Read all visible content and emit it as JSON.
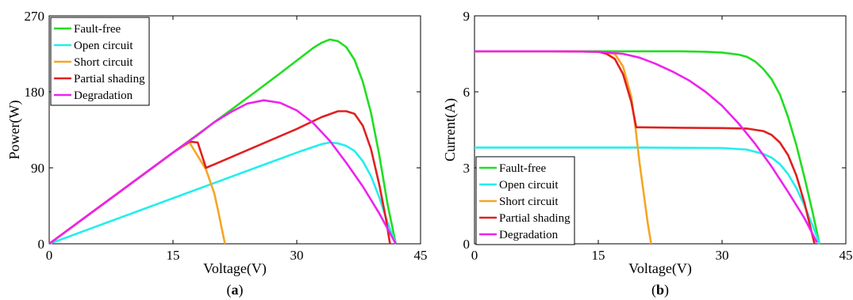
{
  "chart_data": [
    {
      "type": "line",
      "caption_prefix": "(",
      "caption_letter": "a",
      "caption_suffix": ")",
      "xlabel": "Voltage(V)",
      "ylabel": "Power(W)",
      "xlim": [
        0,
        45
      ],
      "ylim": [
        0,
        270
      ],
      "xticks": [
        0,
        15,
        30,
        45
      ],
      "yticks": [
        0,
        90,
        180,
        270
      ],
      "grid": false,
      "legend_position": "top-left",
      "series": [
        {
          "name": "Fault-free",
          "color": "#22dd22",
          "x": [
            0,
            5,
            10,
            15,
            20,
            25,
            28,
            30,
            32,
            33,
            34,
            35,
            36,
            37,
            38,
            39,
            40,
            41,
            42
          ],
          "y": [
            0,
            36,
            72,
            108,
            144,
            180,
            202,
            217,
            232,
            238,
            242,
            240,
            233,
            218,
            192,
            155,
            105,
            47,
            0
          ]
        },
        {
          "name": "Open circuit",
          "color": "#22eeee",
          "x": [
            0,
            5,
            10,
            15,
            20,
            25,
            30,
            33,
            34,
            35,
            36,
            37,
            38,
            39,
            40,
            41,
            42
          ],
          "y": [
            0,
            18,
            36,
            54,
            72,
            90,
            108,
            118,
            120,
            119,
            116,
            110,
            98,
            80,
            55,
            25,
            0
          ]
        },
        {
          "name": "Short circuit",
          "color": "#f5a623",
          "x": [
            0,
            5,
            10,
            15,
            17,
            19,
            20,
            20.5,
            21,
            21.3
          ],
          "y": [
            0,
            36,
            72,
            108,
            120,
            88,
            60,
            38,
            14,
            0
          ]
        },
        {
          "name": "Partial shading",
          "color": "#e02020",
          "x": [
            0,
            5,
            10,
            15,
            16,
            17,
            18,
            19,
            20,
            25,
            30,
            33,
            35,
            36,
            37,
            38,
            39,
            40,
            40.8,
            41.3
          ],
          "y": [
            0,
            36,
            72,
            108,
            115,
            121,
            120,
            90,
            94,
            115,
            136,
            150,
            157,
            157,
            154,
            140,
            112,
            70,
            30,
            0
          ]
        },
        {
          "name": "Degradation",
          "color": "#ee22ee",
          "x": [
            0,
            5,
            10,
            15,
            18,
            20,
            22,
            24,
            26,
            28,
            30,
            32,
            34,
            36,
            38,
            40,
            42
          ],
          "y": [
            0,
            36,
            72,
            108,
            129,
            144,
            156,
            166,
            170,
            167,
            158,
            143,
            122,
            96,
            68,
            36,
            0
          ]
        }
      ]
    },
    {
      "type": "line",
      "caption_prefix": "(",
      "caption_letter": "b",
      "caption_suffix": ")",
      "xlabel": "Voltage(V)",
      "ylabel": "Current(A)",
      "xlim": [
        0,
        45
      ],
      "ylim": [
        0,
        9
      ],
      "xticks": [
        0,
        15,
        30,
        45
      ],
      "yticks": [
        0,
        3,
        6,
        9
      ],
      "grid": false,
      "legend_position": "bottom-left",
      "series": [
        {
          "name": "Fault-free",
          "color": "#22dd22",
          "x": [
            0,
            10,
            20,
            25,
            28,
            30,
            32,
            33,
            34,
            35,
            36,
            37,
            38,
            39,
            40,
            41,
            41.8
          ],
          "y": [
            7.6,
            7.6,
            7.6,
            7.6,
            7.58,
            7.55,
            7.47,
            7.38,
            7.2,
            6.9,
            6.5,
            5.9,
            5.0,
            3.9,
            2.6,
            1.2,
            0
          ]
        },
        {
          "name": "Open circuit",
          "color": "#22eeee",
          "x": [
            0,
            10,
            20,
            30,
            33,
            35,
            36,
            37,
            38,
            39,
            40,
            41,
            41.8
          ],
          "y": [
            3.8,
            3.8,
            3.8,
            3.78,
            3.72,
            3.55,
            3.4,
            3.15,
            2.75,
            2.2,
            1.5,
            0.7,
            0
          ]
        },
        {
          "name": "Short circuit",
          "color": "#f5a623",
          "x": [
            0,
            10,
            15,
            17,
            18,
            19,
            19.5,
            20,
            20.5,
            21,
            21.4
          ],
          "y": [
            7.6,
            7.6,
            7.58,
            7.5,
            7.0,
            5.8,
            4.6,
            3.2,
            2.0,
            0.8,
            0
          ]
        },
        {
          "name": "Partial shading",
          "color": "#e02020",
          "x": [
            0,
            10,
            15,
            16,
            17,
            18,
            19,
            19.6,
            20,
            25,
            30,
            33,
            35,
            36,
            37,
            38,
            39,
            40,
            40.6,
            41.2
          ],
          "y": [
            7.6,
            7.6,
            7.58,
            7.5,
            7.3,
            6.7,
            5.6,
            4.6,
            4.6,
            4.58,
            4.57,
            4.55,
            4.45,
            4.3,
            4.0,
            3.5,
            2.7,
            1.6,
            0.8,
            0
          ]
        },
        {
          "name": "Degradation",
          "color": "#ee22ee",
          "x": [
            0,
            10,
            15,
            18,
            20,
            22,
            24,
            26,
            28,
            30,
            32,
            34,
            36,
            38,
            40,
            41.5
          ],
          "y": [
            7.6,
            7.6,
            7.58,
            7.5,
            7.35,
            7.1,
            6.8,
            6.45,
            6.0,
            5.45,
            4.75,
            3.95,
            3.05,
            2.05,
            1.0,
            0.05
          ]
        }
      ]
    }
  ]
}
